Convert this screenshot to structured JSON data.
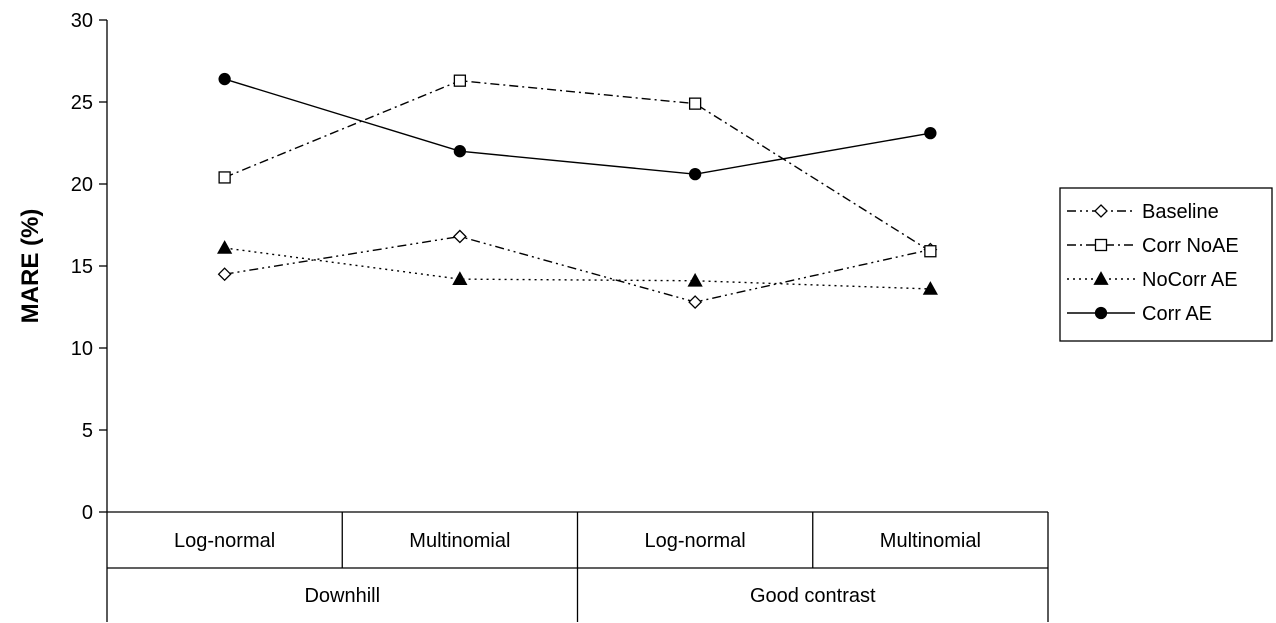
{
  "chart_data": {
    "type": "line",
    "ylabel": "MARE (%)",
    "ylim": [
      0,
      30
    ],
    "yticks": [
      0,
      5,
      10,
      15,
      20,
      25,
      30
    ],
    "categories": [
      "Log-normal",
      "Multinomial",
      "Log-normal",
      "Multinomial"
    ],
    "groups": [
      {
        "label": "Downhill",
        "span": [
          0,
          1
        ]
      },
      {
        "label": "Good contrast",
        "span": [
          2,
          3
        ]
      }
    ],
    "grid": false,
    "legend_position": "right",
    "series": [
      {
        "name": "Baseline",
        "values": [
          14.5,
          16.8,
          12.8,
          16.0
        ],
        "marker": "diamond-open",
        "dash": "dash-dot-dot",
        "color": "#000000"
      },
      {
        "name": "Corr NoAE",
        "values": [
          20.4,
          26.3,
          24.9,
          15.9
        ],
        "marker": "square-open",
        "dash": "dash-dot",
        "color": "#000000"
      },
      {
        "name": "NoCorr AE",
        "values": [
          16.1,
          14.2,
          14.1,
          13.6
        ],
        "marker": "triangle-filled",
        "dash": "dotted",
        "color": "#000000"
      },
      {
        "name": "Corr AE",
        "values": [
          26.4,
          22.0,
          20.6,
          23.1
        ],
        "marker": "circle-filled",
        "dash": "solid",
        "color": "#000000"
      }
    ]
  }
}
